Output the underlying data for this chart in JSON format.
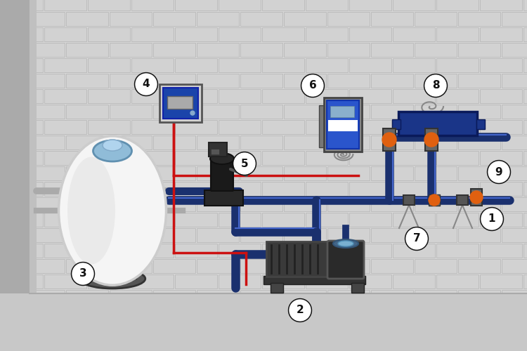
{
  "bg_color": "#d8d8d8",
  "brick_face": "#d2d2d2",
  "brick_edge": "#bcbcbc",
  "wall_left_color": "#b0b0b0",
  "floor_color": "#c8c8c8",
  "pipe_dark": "#1a306e",
  "pipe_mid": "#2a4a9a",
  "pipe_light": "#4466cc",
  "red_wire": "#cc1111",
  "orange": "#e06010",
  "dark_gray": "#333333",
  "med_gray": "#666666",
  "light_gray": "#cccccc",
  "box_blue": "#1a44aa",
  "deep_blue": "#1a2e7a",
  "white": "#f5f5f5",
  "off_white": "#e8e8e8",
  "black": "#111111",
  "pump_gray": "#555555",
  "pump_dark": "#222222"
}
